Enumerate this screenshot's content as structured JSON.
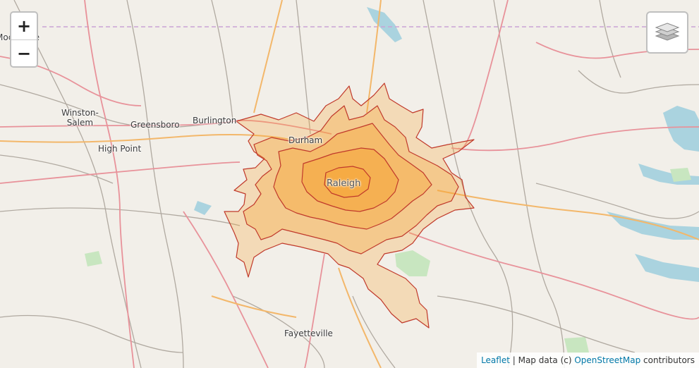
{
  "map": {
    "cities": [
      {
        "name": "Winston-\nSalem"
      },
      {
        "name": "Greensboro"
      },
      {
        "name": "Burlington"
      },
      {
        "name": "High Point"
      },
      {
        "name": "Durham"
      },
      {
        "name": "Raleigh"
      },
      {
        "name": "Fayetteville"
      },
      {
        "name": "Mocksville"
      }
    ],
    "overlay_colors": {
      "fill": "#f7a535",
      "stroke": "#c0392b"
    }
  },
  "controls": {
    "zoom_in_label": "+",
    "zoom_out_label": "−",
    "layers_icon": "layers-icon"
  },
  "attribution": {
    "leaflet_link": "Leaflet",
    "separator": " | Map data (c) ",
    "osm_link": "OpenStreetMap",
    "suffix": " contributors"
  }
}
